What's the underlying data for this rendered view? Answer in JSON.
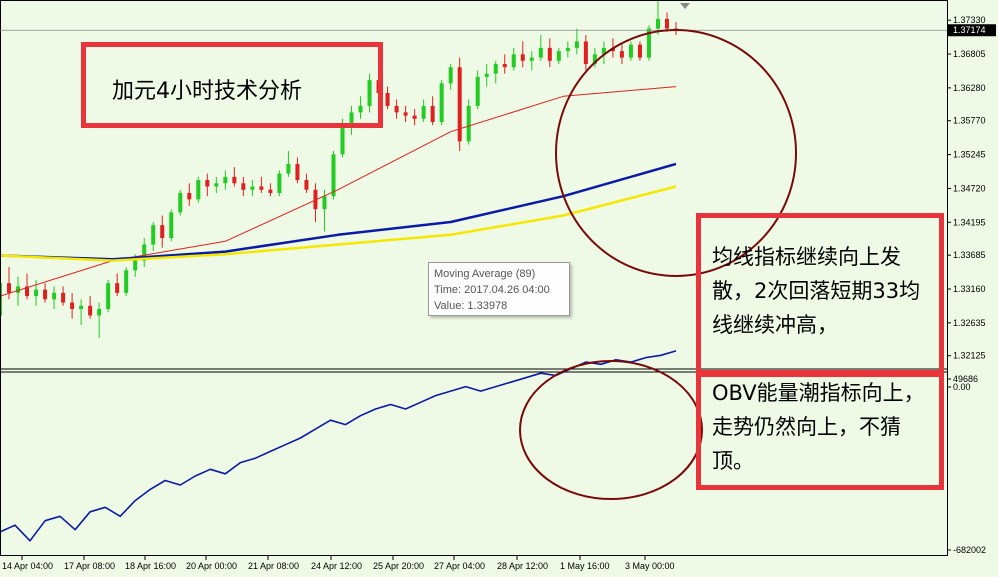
{
  "chart_data": [
    {
      "type": "candlestick",
      "y_ticks": [
        "1.37330",
        "1.36805",
        "1.36280",
        "1.35770",
        "1.35245",
        "1.34720",
        "1.34195",
        "1.33685",
        "1.33160",
        "1.32635",
        "1.32125"
      ],
      "ylim": [
        1.3195,
        1.3755
      ],
      "current_price_label": "1.37174",
      "current_price": 1.37174,
      "x_ticks": [
        "14 Apr 04:00",
        "17 Apr 08:00",
        "18 Apr 16:00",
        "20 Apr 00:00",
        "21 Apr 08:00",
        "24 Apr 12:00",
        "25 Apr 20:00",
        "27 Apr 04:00",
        "28 Apr 12:00",
        "1 May 16:00",
        "3 May 00:00"
      ],
      "candles": [
        [
          1.3275,
          1.3335,
          1.3268,
          1.3325
        ],
        [
          1.3325,
          1.335,
          1.33,
          1.331
        ],
        [
          1.331,
          1.3335,
          1.329,
          1.332
        ],
        [
          1.332,
          1.334,
          1.33,
          1.3305
        ],
        [
          1.3305,
          1.333,
          1.329,
          1.3315
        ],
        [
          1.3315,
          1.3325,
          1.3295,
          1.33
        ],
        [
          1.33,
          1.332,
          1.3285,
          1.331
        ],
        [
          1.331,
          1.332,
          1.329,
          1.3295
        ],
        [
          1.3295,
          1.331,
          1.327,
          1.3285
        ],
        [
          1.3285,
          1.33,
          1.326,
          1.329
        ],
        [
          1.329,
          1.3305,
          1.327,
          1.3275
        ],
        [
          1.3275,
          1.3295,
          1.324,
          1.3285
        ],
        [
          1.3285,
          1.333,
          1.328,
          1.3325
        ],
        [
          1.3325,
          1.334,
          1.3305,
          1.331
        ],
        [
          1.331,
          1.335,
          1.3305,
          1.3345
        ],
        [
          1.3345,
          1.337,
          1.3335,
          1.336
        ],
        [
          1.336,
          1.3395,
          1.335,
          1.3385
        ],
        [
          1.3385,
          1.342,
          1.3375,
          1.3415
        ],
        [
          1.3415,
          1.343,
          1.338,
          1.3395
        ],
        [
          1.3395,
          1.344,
          1.339,
          1.3435
        ],
        [
          1.3435,
          1.347,
          1.343,
          1.3465
        ],
        [
          1.3465,
          1.348,
          1.3445,
          1.3455
        ],
        [
          1.3455,
          1.349,
          1.345,
          1.3485
        ],
        [
          1.3485,
          1.3495,
          1.346,
          1.3475
        ],
        [
          1.3475,
          1.349,
          1.3465,
          1.348
        ],
        [
          1.348,
          1.35,
          1.347,
          1.349
        ],
        [
          1.349,
          1.3505,
          1.3475,
          1.348
        ],
        [
          1.348,
          1.349,
          1.346,
          1.347
        ],
        [
          1.347,
          1.3485,
          1.346,
          1.3475
        ],
        [
          1.3475,
          1.349,
          1.3465,
          1.347
        ],
        [
          1.347,
          1.348,
          1.346,
          1.3465
        ],
        [
          1.3465,
          1.35,
          1.346,
          1.3495
        ],
        [
          1.3495,
          1.353,
          1.349,
          1.351
        ],
        [
          1.351,
          1.352,
          1.348,
          1.3485
        ],
        [
          1.3485,
          1.3495,
          1.3465,
          1.347
        ],
        [
          1.347,
          1.348,
          1.342,
          1.344
        ],
        [
          1.344,
          1.347,
          1.3405,
          1.346
        ],
        [
          1.346,
          1.353,
          1.3455,
          1.3525
        ],
        [
          1.3525,
          1.358,
          1.352,
          1.357
        ],
        [
          1.357,
          1.36,
          1.3555,
          1.359
        ],
        [
          1.359,
          1.3615,
          1.358,
          1.36
        ],
        [
          1.36,
          1.365,
          1.359,
          1.364
        ],
        [
          1.364,
          1.3655,
          1.361,
          1.362
        ],
        [
          1.362,
          1.363,
          1.3595,
          1.36
        ],
        [
          1.36,
          1.361,
          1.358,
          1.359
        ],
        [
          1.359,
          1.36,
          1.3575,
          1.3585
        ],
        [
          1.3585,
          1.3595,
          1.357,
          1.358
        ],
        [
          1.358,
          1.361,
          1.3575,
          1.36
        ],
        [
          1.36,
          1.3615,
          1.357,
          1.3575
        ],
        [
          1.3575,
          1.364,
          1.357,
          1.3635
        ],
        [
          1.3635,
          1.3665,
          1.3625,
          1.366
        ],
        [
          1.366,
          1.3675,
          1.353,
          1.3545
        ],
        [
          1.3545,
          1.361,
          1.354,
          1.36
        ],
        [
          1.36,
          1.3655,
          1.3595,
          1.3645
        ],
        [
          1.3645,
          1.3665,
          1.363,
          1.365
        ],
        [
          1.365,
          1.367,
          1.3635,
          1.3665
        ],
        [
          1.3665,
          1.368,
          1.365,
          1.366
        ],
        [
          1.366,
          1.369,
          1.3655,
          1.368
        ],
        [
          1.368,
          1.37,
          1.366,
          1.367
        ],
        [
          1.367,
          1.3685,
          1.3655,
          1.3675
        ],
        [
          1.3675,
          1.371,
          1.367,
          1.369
        ],
        [
          1.369,
          1.3705,
          1.366,
          1.367
        ],
        [
          1.367,
          1.369,
          1.3665,
          1.3685
        ],
        [
          1.3685,
          1.37,
          1.3675,
          1.369
        ],
        [
          1.369,
          1.372,
          1.368,
          1.37
        ],
        [
          1.37,
          1.371,
          1.3655,
          1.3665
        ],
        [
          1.3665,
          1.369,
          1.366,
          1.368
        ],
        [
          1.368,
          1.37,
          1.3665,
          1.369
        ],
        [
          1.369,
          1.3705,
          1.3675,
          1.3685
        ],
        [
          1.3685,
          1.3695,
          1.3665,
          1.3675
        ],
        [
          1.3675,
          1.37,
          1.367,
          1.3695
        ],
        [
          1.3695,
          1.37,
          1.367,
          1.3675
        ],
        [
          1.3675,
          1.3725,
          1.367,
          1.372
        ],
        [
          1.372,
          1.3765,
          1.371,
          1.3735
        ],
        [
          1.3735,
          1.3745,
          1.3715,
          1.372
        ],
        [
          1.372,
          1.373,
          1.371,
          1.3717
        ]
      ],
      "moving_averages": [
        {
          "color": "#e02020",
          "values": [
            1.3305,
            1.336,
            1.339,
            1.347,
            1.356,
            1.3615,
            1.363
          ]
        },
        {
          "color": "#0a1aa8",
          "values": [
            1.3368,
            1.3362,
            1.3374,
            1.34,
            1.342,
            1.346,
            1.351
          ]
        },
        {
          "color": "#f4e800",
          "values": [
            1.3368,
            1.336,
            1.337,
            1.3385,
            1.34,
            1.343,
            1.3475
          ]
        }
      ],
      "tooltip": {
        "line1": "Moving Average (89)",
        "line2": "Time: 2017.04.26 04:00",
        "line3": "Value: 1.33978"
      }
    },
    {
      "type": "line",
      "name_label": "OBV",
      "y_ticks": [
        "49686",
        "0.00",
        "-682002"
      ],
      "color": "#0a1aa8",
      "values": [
        -610000,
        -580000,
        -650000,
        -560000,
        -540000,
        -600000,
        -520000,
        -500000,
        -540000,
        -470000,
        -420000,
        -380000,
        -400000,
        -360000,
        -330000,
        -350000,
        -300000,
        -280000,
        -250000,
        -220000,
        -190000,
        -150000,
        -110000,
        -130000,
        -90000,
        -60000,
        -40000,
        -60000,
        -30000,
        0,
        20000,
        40000,
        20000,
        40000,
        60000,
        80000,
        100000,
        90000,
        120000,
        150000,
        140000,
        160000,
        150000,
        170000,
        180000,
        200000
      ]
    }
  ],
  "annotations": {
    "title": "加元4小时技术分析",
    "note1": "均线指标继续向上发散，2次回落短期33均线继续冲高，",
    "note2": "OBV能量潮指标向上，走势仍然向上，不猜顶。"
  },
  "colors": {
    "bull": "#22cc22",
    "bear": "#e02020",
    "circle": "#7a0a0a",
    "box": "#e8343a",
    "background": "#eefae6"
  }
}
